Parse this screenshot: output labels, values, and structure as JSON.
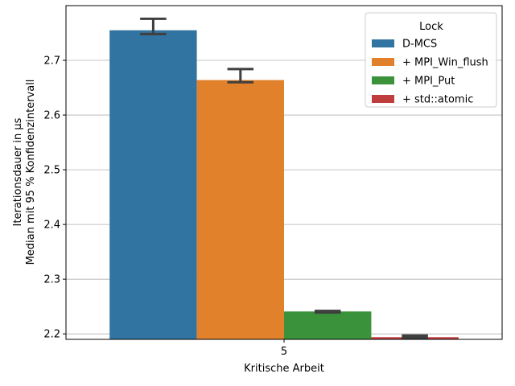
{
  "chart_data": {
    "type": "bar",
    "xlabel": "Kritische Arbeit",
    "ylabel_lines": [
      "Iterationsdauer in µs",
      "Median mit 95 % Konfidenzintervall"
    ],
    "categories": [
      "5"
    ],
    "ylim": [
      2.19,
      2.8
    ],
    "yticks": [
      2.2,
      2.3,
      2.4,
      2.5,
      2.6,
      2.7
    ],
    "ytick_labels": [
      "2.2",
      "2.3",
      "2.4",
      "2.5",
      "2.6",
      "2.7"
    ],
    "grid": "y-axis major",
    "legend": {
      "title": "Lock",
      "placement": "top-right"
    },
    "series": [
      {
        "name": "D-MCS",
        "color": "#3274a1",
        "values": [
          2.755
        ],
        "ci": [
          [
            2.748,
            2.776
          ]
        ]
      },
      {
        "name": "+ MPI_Win_flush",
        "color": "#e1812c",
        "values": [
          2.664
        ],
        "ci": [
          [
            2.66,
            2.684
          ]
        ]
      },
      {
        "name": "+ MPI_Put",
        "color": "#3a923a",
        "values": [
          2.241
        ],
        "ci": [
          [
            2.239,
            2.242
          ]
        ]
      },
      {
        "name": "+ std::atomic",
        "color": "#c03d3e",
        "values": [
          2.194
        ],
        "ci": [
          [
            2.193,
            2.197
          ]
        ]
      }
    ],
    "errorbar_color": "#3f3f3f"
  }
}
